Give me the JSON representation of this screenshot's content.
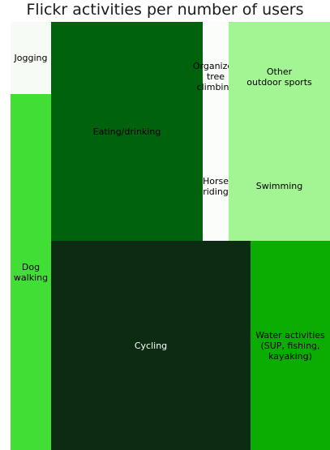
{
  "chart_data": {
    "type": "treemap",
    "title": "Flickr activities per number of users",
    "items": [
      {
        "label": "Jogging",
        "color": "#f7fbf5",
        "label_color": "#000000"
      },
      {
        "label": "Dog walking",
        "color": "#41de35",
        "label_color": "#000000"
      },
      {
        "label": "Eating/drinking",
        "color": "#00620c",
        "label_color": "#000000"
      },
      {
        "label": "Organized\ntree climbing",
        "color": "#fbfdfa",
        "label_color": "#000000"
      },
      {
        "label": "Other\noutdoor sports",
        "color": "#a3f593",
        "label_color": "#000000"
      },
      {
        "label": "Horse riding",
        "color": "#fbfdfa",
        "label_color": "#000000"
      },
      {
        "label": "Swimming",
        "color": "#a3f593",
        "label_color": "#000000"
      },
      {
        "label": "Cycling",
        "color": "#0b2c13",
        "label_color": "#ffffff"
      },
      {
        "label": "Water activities\n(SUP, fishing,\nkayaking)",
        "color": "#0cad02",
        "label_color": "#000000"
      }
    ]
  }
}
